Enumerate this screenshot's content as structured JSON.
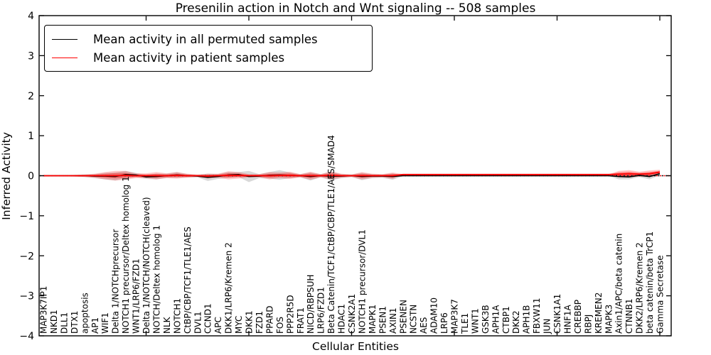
{
  "title": "Presenilin action in Notch and Wnt signaling -- 508 samples",
  "legend": [
    {
      "label": "Mean activity in all permuted samples",
      "color": "#000000"
    },
    {
      "label": "Mean activity in patient samples",
      "color": "#ff0000"
    }
  ],
  "colors": {
    "permuted_line": "#000000",
    "patient_line": "#ff0000",
    "permuted_band": "#888888",
    "patient_band": "#ff0000",
    "reference_dotted": "#000000"
  },
  "chart_data": {
    "type": "line",
    "title": "Presenilin action in Notch and Wnt signaling -- 508 samples",
    "xlabel": "Cellular Entities",
    "ylabel": "Inferred Activity",
    "ylim": [
      -4,
      4
    ],
    "yticks": [
      4,
      3,
      2,
      1,
      0,
      -1,
      -2,
      -3,
      -4
    ],
    "x_major_tick_every": 10,
    "grid": false,
    "legend_position": "upper left",
    "reference_line": {
      "y": 0,
      "style": "dotted"
    },
    "categories": [
      "MAP3K7IP1",
      "NKD1",
      "DLL1",
      "DTX1",
      "apoptosis",
      "AP1",
      "WIF1",
      "Delta 1/NOTCHprecursor",
      "NOTCH1 precursor/Deltex homolog 1",
      "WNT1/LRP6/FZD1",
      "Delta 1/NOTCH/NOTCH(cleaved)",
      "NOTCH/Deltex homolog 1",
      "NLK",
      "NOTCH1",
      "CtBP/CBP/TCF1/TLE1/AES",
      "DVL1",
      "CCND1",
      "APC",
      "DKK1/LRP6/Kremen 2",
      "MYC",
      "DKK1",
      "FZD1",
      "PPARD",
      "FOS",
      "PPP2R5D",
      "FRAT1",
      "NICD/RBPSUH",
      "LRP6/FZD1",
      "Beta Catenin/TCF1/CtBP/CBP/TLE1/AES/SMAD4",
      "HDAC1",
      "CSNK2A1",
      "NOTCH1 precursor/DVL1",
      "MAPK1",
      "PSEN1",
      "AXIN1",
      "PSENEN",
      "NCSTN",
      "AES",
      "ADAM10",
      "LRP6",
      "MAP3K7",
      "TLE1",
      "WNT1",
      "GSK3B",
      "APH1A",
      "CTBP1",
      "DKK2",
      "APH1B",
      "FBXW11",
      "JUN",
      "CSNK1A1",
      "HNF1A",
      "CREBBP",
      "RBPJ",
      "KREMEN2",
      "MAPK3",
      "Axin1/APC/beta catenin",
      "CTNNB1",
      "DKK2/LRP6/Kremen 2",
      "beta catenin/beta TrCP1",
      "Gamma Secretase"
    ],
    "series": [
      {
        "name": "Mean activity in all permuted samples",
        "color": "#000000",
        "values": [
          0,
          0,
          0,
          0,
          0,
          -0.01,
          -0.01,
          -0.02,
          0.03,
          0.02,
          -0.03,
          -0.02,
          0,
          0.02,
          0,
          -0.01,
          -0.04,
          -0.02,
          0.02,
          0.03,
          -0.02,
          -0.01,
          0.01,
          0.02,
          0.01,
          0,
          -0.02,
          0,
          -0.01,
          -0.01,
          0,
          -0.02,
          -0.01,
          -0.01,
          -0.02,
          0,
          0,
          0,
          0,
          0,
          0,
          0,
          0,
          0,
          0,
          0,
          0,
          0,
          0,
          0,
          0,
          0,
          0,
          0,
          0,
          0,
          -0.02,
          -0.03,
          0.01,
          -0.02,
          0.05
        ],
        "band_half_width": [
          0.01,
          0.01,
          0.015,
          0.02,
          0.03,
          0.05,
          0.08,
          0.1,
          0.09,
          0.05,
          0.05,
          0.07,
          0.05,
          0.07,
          0.04,
          0.03,
          0.09,
          0.06,
          0.07,
          0.06,
          0.14,
          0.05,
          0.08,
          0.12,
          0.07,
          0.04,
          0.1,
          0.04,
          0.11,
          0.05,
          0.03,
          0.09,
          0.05,
          0.04,
          0.08,
          0.01,
          0.005,
          0.005,
          0.005,
          0.005,
          0.005,
          0.005,
          0.005,
          0.005,
          0.005,
          0.005,
          0.005,
          0.005,
          0.005,
          0.005,
          0.005,
          0.005,
          0.005,
          0.005,
          0.005,
          0.005,
          0.07,
          0.06,
          0.04,
          0.07,
          0.04
        ]
      },
      {
        "name": "Mean activity in patient samples",
        "color": "#ff0000",
        "values": [
          0,
          0,
          0,
          0,
          0,
          0,
          0,
          0,
          0.01,
          0,
          0,
          0,
          0,
          0.01,
          0,
          0,
          -0.01,
          0,
          0.01,
          0.01,
          0,
          0,
          0,
          0.01,
          0.01,
          0,
          0,
          0,
          0.01,
          0,
          0,
          0,
          0,
          0,
          0,
          0.03,
          0.03,
          0.03,
          0.03,
          0.03,
          0.03,
          0.03,
          0.03,
          0.03,
          0.03,
          0.03,
          0.03,
          0.03,
          0.03,
          0.03,
          0.03,
          0.03,
          0.03,
          0.03,
          0.03,
          0.03,
          0.04,
          0.05,
          0.04,
          0.05,
          0.09
        ],
        "band_half_width": [
          0.01,
          0.01,
          0.015,
          0.02,
          0.03,
          0.05,
          0.09,
          0.12,
          0.11,
          0.06,
          0.06,
          0.09,
          0.06,
          0.08,
          0.05,
          0.03,
          0.06,
          0.05,
          0.1,
          0.08,
          0.04,
          0.04,
          0.09,
          0.07,
          0.09,
          0.04,
          0.1,
          0.04,
          0.1,
          0.05,
          0.03,
          0.09,
          0.05,
          0.04,
          0.08,
          0.01,
          0.005,
          0.005,
          0.005,
          0.005,
          0.005,
          0.005,
          0.005,
          0.005,
          0.005,
          0.005,
          0.005,
          0.005,
          0.005,
          0.005,
          0.005,
          0.005,
          0.005,
          0.005,
          0.005,
          0.005,
          0.08,
          0.09,
          0.06,
          0.08,
          0.06
        ]
      }
    ]
  }
}
